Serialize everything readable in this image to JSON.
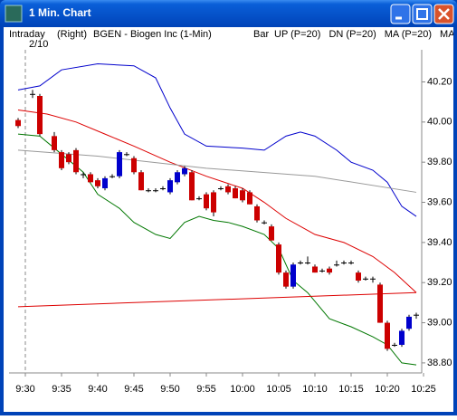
{
  "window": {
    "title": "1 Min. Chart"
  },
  "chart_data": {
    "type": "candlestick",
    "header": [
      "Intraday",
      "(Right)",
      "BGEN - Biogen Inc (1-Min)"
    ],
    "date": "2/10",
    "style": "Bar",
    "up_color": "#0000cc",
    "down_color": "#cc0000",
    "x": [
      "9:29",
      "9:31",
      "9:32",
      "9:34",
      "9:35",
      "9:36",
      "9:37",
      "9:38",
      "9:39",
      "9:40",
      "9:41",
      "9:42",
      "9:43",
      "9:44",
      "9:45",
      "9:46",
      "9:47",
      "9:48",
      "9:49",
      "9:50",
      "9:51",
      "9:52",
      "9:53",
      "9:54",
      "9:55",
      "9:56",
      "9:57",
      "9:58",
      "9:59",
      "10:00",
      "10:01",
      "10:02",
      "10:03",
      "10:04",
      "10:05",
      "10:06",
      "10:07",
      "10:08",
      "10:09",
      "10:10",
      "10:11",
      "10:12",
      "10:13",
      "10:14",
      "10:15",
      "10:16",
      "10:17",
      "10:18",
      "10:19",
      "10:20",
      "10:21",
      "10:22",
      "10:23",
      "10:24"
    ],
    "open": [
      40.01,
      40.14,
      40.13,
      39.93,
      39.85,
      39.84,
      39.86,
      39.74,
      39.74,
      39.71,
      39.67,
      39.73,
      39.73,
      39.84,
      39.82,
      39.75,
      39.66,
      39.66,
      39.67,
      39.65,
      39.7,
      39.74,
      39.75,
      39.62,
      39.64,
      39.65,
      39.67,
      39.68,
      39.67,
      39.66,
      39.65,
      39.58,
      39.5,
      39.48,
      39.39,
      39.25,
      39.18,
      39.3,
      39.3,
      39.28,
      39.26,
      39.27,
      39.29,
      39.3,
      39.3,
      39.25,
      39.22,
      39.22,
      39.19,
      39.0,
      38.89,
      38.89,
      38.97,
      39.04
    ],
    "high": [
      40.02,
      40.16,
      40.14,
      39.95,
      39.86,
      39.85,
      39.87,
      39.75,
      39.75,
      39.72,
      39.73,
      39.74,
      39.86,
      39.85,
      39.83,
      39.76,
      39.67,
      39.67,
      39.68,
      39.72,
      39.76,
      39.78,
      39.76,
      39.63,
      39.65,
      39.66,
      39.68,
      39.69,
      39.68,
      39.67,
      39.66,
      39.59,
      39.51,
      39.49,
      39.4,
      39.26,
      39.3,
      39.31,
      39.33,
      39.29,
      39.27,
      39.28,
      39.31,
      39.31,
      39.31,
      39.26,
      39.23,
      39.23,
      39.2,
      39.01,
      38.9,
      38.97,
      39.04,
      39.05
    ],
    "low": [
      39.97,
      40.12,
      39.93,
      39.85,
      39.76,
      39.79,
      39.74,
      39.72,
      39.7,
      39.67,
      39.66,
      39.72,
      39.72,
      39.83,
      39.74,
      39.66,
      39.65,
      39.65,
      39.66,
      39.64,
      39.69,
      39.73,
      39.61,
      39.61,
      39.56,
      39.53,
      39.66,
      39.64,
      39.62,
      39.6,
      39.59,
      39.5,
      39.49,
      39.41,
      39.24,
      39.17,
      39.17,
      39.29,
      39.29,
      39.25,
      39.25,
      39.24,
      39.28,
      39.29,
      39.29,
      39.2,
      39.21,
      39.2,
      39.0,
      38.86,
      38.88,
      38.88,
      38.96,
      39.02
    ],
    "close": [
      39.98,
      40.14,
      39.94,
      39.86,
      39.77,
      39.8,
      39.75,
      39.74,
      39.7,
      39.68,
      39.72,
      39.73,
      39.85,
      39.84,
      39.75,
      39.66,
      39.66,
      39.66,
      39.67,
      39.71,
      39.75,
      39.77,
      39.61,
      39.62,
      39.57,
      39.55,
      39.67,
      39.65,
      39.62,
      39.61,
      39.59,
      39.51,
      39.5,
      39.41,
      39.25,
      39.18,
      39.29,
      39.3,
      39.3,
      39.25,
      39.26,
      39.25,
      39.29,
      39.3,
      39.3,
      39.21,
      39.22,
      39.22,
      39.0,
      38.87,
      38.89,
      38.96,
      39.03,
      39.04
    ],
    "lines": [
      {
        "name": "UP (P=20)",
        "color": "#0000cc",
        "x": [
          "9:29",
          "9:32",
          "9:35",
          "9:40",
          "9:45",
          "9:48",
          "9:50",
          "9:52",
          "9:55",
          "10:00",
          "10:03",
          "10:06",
          "10:08",
          "10:10",
          "10:13",
          "10:15",
          "10:18",
          "10:20",
          "10:22",
          "10:24"
        ],
        "values": [
          40.16,
          40.18,
          40.26,
          40.29,
          40.28,
          40.22,
          40.07,
          39.94,
          39.88,
          39.87,
          39.86,
          39.93,
          39.95,
          39.93,
          39.86,
          39.8,
          39.76,
          39.7,
          39.58,
          39.53
        ]
      },
      {
        "name": "DN (P=20)",
        "color": "#007700",
        "x": [
          "9:29",
          "9:32",
          "9:35",
          "9:38",
          "9:40",
          "9:43",
          "9:45",
          "9:48",
          "9:50",
          "9:52",
          "9:54",
          "9:56",
          "9:58",
          "10:00",
          "10:03",
          "10:05",
          "10:07",
          "10:09",
          "10:12",
          "10:15",
          "10:18",
          "10:20",
          "10:22",
          "10:24"
        ],
        "values": [
          39.94,
          39.93,
          39.84,
          39.75,
          39.64,
          39.57,
          39.5,
          39.44,
          39.42,
          39.5,
          39.53,
          39.51,
          39.5,
          39.48,
          39.44,
          39.37,
          39.21,
          39.15,
          39.02,
          38.98,
          38.93,
          38.89,
          38.8,
          38.79
        ]
      },
      {
        "name": "MA (P=20)",
        "color": "#dd0000",
        "x": [
          "9:29",
          "9:33",
          "9:37",
          "9:41",
          "9:45",
          "9:50",
          "9:55",
          "10:00",
          "10:03",
          "10:06",
          "10:10",
          "10:14",
          "10:18",
          "10:21",
          "10:24"
        ],
        "values": [
          40.06,
          40.04,
          40.0,
          39.94,
          39.88,
          39.8,
          39.73,
          39.67,
          39.6,
          39.52,
          39.44,
          39.4,
          39.33,
          39.25,
          39.15
        ]
      },
      {
        "name": "MA",
        "color": "#999999",
        "x": [
          "9:29",
          "9:40",
          "9:55",
          "10:10",
          "10:24"
        ],
        "values": [
          39.86,
          39.83,
          39.77,
          39.73,
          39.65
        ]
      },
      {
        "color": "#dd0000",
        "x": [
          "9:29",
          "10:24"
        ],
        "values": [
          39.08,
          39.15
        ]
      }
    ],
    "xlim": [
      "9:28",
      "10:25"
    ],
    "xticks": [
      "9:30",
      "9:35",
      "9:40",
      "9:45",
      "9:50",
      "9:55",
      "10:00",
      "10:05",
      "10:10",
      "10:15",
      "10:20",
      "10:25"
    ],
    "ylim": [
      38.75,
      40.36
    ],
    "yticks": [
      {
        "value": 38.8,
        "label": "38.80"
      },
      {
        "value": 39,
        "label": "39.00"
      },
      {
        "value": 39.2,
        "label": "39.20"
      },
      {
        "value": 39.4,
        "label": "39.40"
      },
      {
        "value": 39.6,
        "label": "39.60"
      },
      {
        "value": 39.8,
        "label": "39.80"
      },
      {
        "value": 40,
        "label": "40.00"
      },
      {
        "value": 40.2,
        "label": "40.20"
      }
    ]
  }
}
